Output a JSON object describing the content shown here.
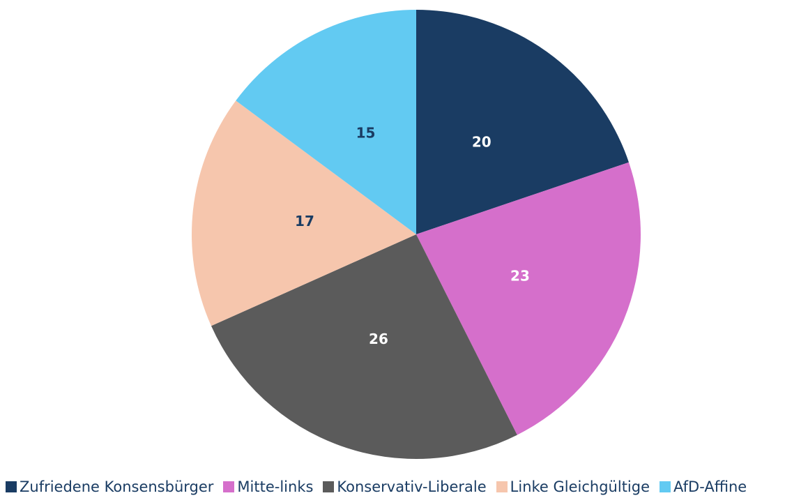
{
  "chart_data": {
    "type": "pie",
    "categories": [
      "Zufriedene Konsensbürger",
      "Mitte-links",
      "Konservativ-Liberale",
      "Linke Gleichgültige",
      "AfD-Affine"
    ],
    "values": [
      20,
      23,
      26,
      17,
      15
    ],
    "colors": [
      "#1a3c63",
      "#d56fcb",
      "#5b5b5b",
      "#f6c6ad",
      "#62caf2"
    ],
    "label_colors": [
      "#ffffff",
      "#ffffff",
      "#ffffff",
      "#1a3c63",
      "#1a3c63"
    ],
    "legend": "bottom"
  }
}
